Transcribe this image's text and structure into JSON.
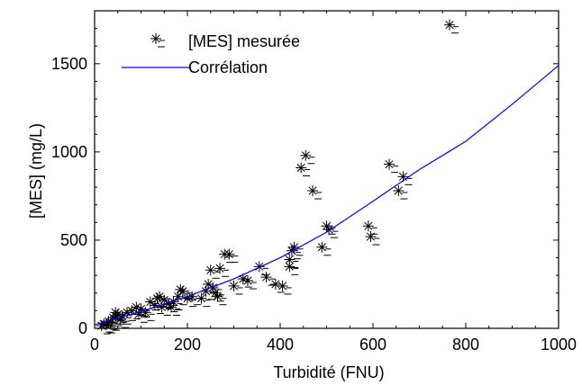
{
  "chart_data": {
    "type": "scatter",
    "title": "",
    "xlabel": "Turbidité (FNU)",
    "ylabel": "[MES] (mg/L)",
    "xlim": [
      0,
      1000
    ],
    "ylim": [
      0,
      1800
    ],
    "xticks": [
      0,
      200,
      400,
      600,
      800,
      1000
    ],
    "yticks": [
      0,
      500,
      1000,
      1500
    ],
    "grid": false,
    "legend_placement": "top-left",
    "series": [
      {
        "name": "[MES] mesurée",
        "marker": "asterisk",
        "color": "#000000",
        "points": [
          [
            15,
            15
          ],
          [
            20,
            25
          ],
          [
            25,
            20
          ],
          [
            30,
            40
          ],
          [
            35,
            35
          ],
          [
            40,
            60
          ],
          [
            45,
            70
          ],
          [
            45,
            90
          ],
          [
            50,
            80
          ],
          [
            55,
            50
          ],
          [
            60,
            70
          ],
          [
            70,
            90
          ],
          [
            80,
            100
          ],
          [
            90,
            120
          ],
          [
            95,
            80
          ],
          [
            100,
            110
          ],
          [
            110,
            90
          ],
          [
            120,
            150
          ],
          [
            130,
            130
          ],
          [
            135,
            170
          ],
          [
            140,
            180
          ],
          [
            145,
            120
          ],
          [
            150,
            160
          ],
          [
            160,
            140
          ],
          [
            165,
            120
          ],
          [
            170,
            150
          ],
          [
            180,
            180
          ],
          [
            185,
            220
          ],
          [
            190,
            210
          ],
          [
            200,
            170
          ],
          [
            210,
            180
          ],
          [
            230,
            170
          ],
          [
            240,
            210
          ],
          [
            245,
            250
          ],
          [
            250,
            330
          ],
          [
            255,
            230
          ],
          [
            260,
            200
          ],
          [
            265,
            180
          ],
          [
            270,
            340
          ],
          [
            280,
            420
          ],
          [
            290,
            420
          ],
          [
            300,
            240
          ],
          [
            320,
            280
          ],
          [
            330,
            270
          ],
          [
            355,
            350
          ],
          [
            370,
            290
          ],
          [
            390,
            250
          ],
          [
            405,
            240
          ],
          [
            420,
            350
          ],
          [
            420,
            390
          ],
          [
            425,
            440
          ],
          [
            430,
            460
          ],
          [
            445,
            910
          ],
          [
            455,
            980
          ],
          [
            470,
            780
          ],
          [
            490,
            460
          ],
          [
            500,
            580
          ],
          [
            505,
            560
          ],
          [
            590,
            580
          ],
          [
            595,
            520
          ],
          [
            635,
            930
          ],
          [
            655,
            780
          ],
          [
            665,
            860
          ],
          [
            765,
            1720
          ]
        ]
      },
      {
        "name": "Corrélation",
        "type": "line",
        "color": "#0000ff",
        "x": [
          0,
          100,
          200,
          300,
          400,
          500,
          600,
          700,
          800,
          900,
          1000
        ],
        "y": [
          20,
          95,
          180,
          280,
          400,
          545,
          720,
          900,
          1060,
          1270,
          1490
        ]
      }
    ]
  }
}
